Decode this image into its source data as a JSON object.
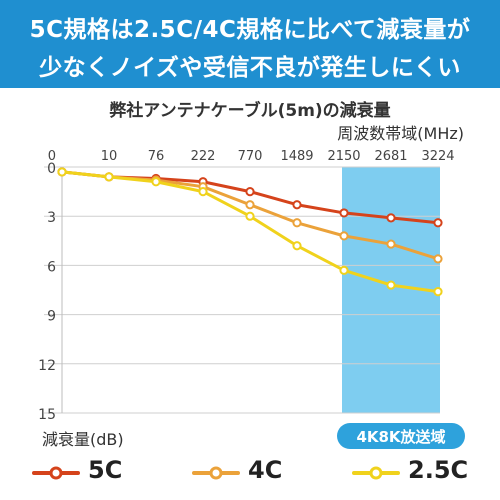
{
  "banner": {
    "line1": "5C規格は2.5C/4C規格に比べて減衰量が",
    "line2": "少なくノイズや受信不良が発生しにくい"
  },
  "colors": {
    "banner_bg": "#1f8fd0",
    "band_fill": "#7ecdf0",
    "band_label_bg": "#2ea2dc",
    "grid": "#cfcfcf"
  },
  "chart_data": {
    "type": "line",
    "title": "弊社アンテナケーブル(5m)の減衰量",
    "xlabel": "周波数帯域(MHz)",
    "ylabel": "減衰量(dB)",
    "categories": [
      "0",
      "10",
      "76",
      "222",
      "770",
      "1489",
      "2150",
      "2681",
      "3224"
    ],
    "ylim": [
      0,
      15
    ],
    "y_ticks": [
      "0",
      "3",
      "6",
      "9",
      "12",
      "15"
    ],
    "y_inverted": true,
    "grid": true,
    "legend_position": "bottom",
    "highlight_band": {
      "from_category": "2150",
      "to_category": "3224",
      "label": "4K8K放送域"
    },
    "series": [
      {
        "name": "5C",
        "color": "#d5431b",
        "values": [
          0.3,
          0.6,
          0.7,
          0.9,
          1.5,
          2.3,
          2.8,
          3.1,
          3.4
        ]
      },
      {
        "name": "4C",
        "color": "#eba23a",
        "values": [
          0.3,
          0.6,
          0.8,
          1.2,
          2.3,
          3.4,
          4.2,
          4.7,
          5.6
        ]
      },
      {
        "name": "2.5C",
        "color": "#f0d21c",
        "values": [
          0.3,
          0.6,
          0.9,
          1.5,
          3.0,
          4.8,
          6.3,
          7.2,
          7.6
        ]
      }
    ]
  }
}
